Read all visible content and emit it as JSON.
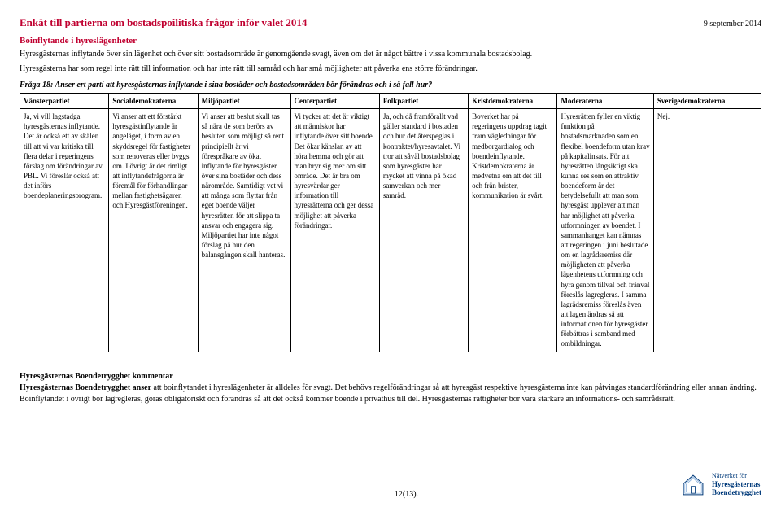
{
  "title": "Enkät till partierna om bostadspoilitiska frågor inför valet 2014",
  "date": "9 september 2014",
  "subtitle": "Boinflytande i hyreslägenheter",
  "intro1": "Hyresgästernas inflytande över sin lägenhet och över sitt bostadsområde är genomgående svagt, även om det är något bättre i vissa kommunala bostadsbolag.",
  "intro2": "Hyresgästerna har som regel inte rätt till information och har inte rätt till samråd och har små möjligheter att påverka ens större förändringar.",
  "question": "Fråga 18: Anser ert parti att hyresgästernas inflytande i sina bostäder och bostadsområden bör förändras och i så fall hur?",
  "columns": [
    {
      "label": "Vänsterpartiet",
      "width": "12%"
    },
    {
      "label": "Socialdemokraterna",
      "width": "12%"
    },
    {
      "label": "Miljöpartiet",
      "width": "12.5%"
    },
    {
      "label": "Centerpartiet",
      "width": "12%"
    },
    {
      "label": "Folkpartiet",
      "width": "12%"
    },
    {
      "label": "Kristdemokraterna",
      "width": "12%"
    },
    {
      "label": "Moderaterna",
      "width": "13%"
    },
    {
      "label": "Sverigedemokraterna",
      "width": "14.5%"
    }
  ],
  "cells": [
    "Ja, vi vill lagstadga hyresgästernas inflytande. Det är också ett av skälen till att vi var kritiska till flera delar i regeringens förslag om förändringar av PBL. Vi föreslår också att det införs boendeplaneringsprogram.",
    "Vi anser att ett förstärkt hyresgästinflytande är angeläget, i form av en skyddsregel för fastigheter som renoveras eller byggs om. I övrigt är det rimligt att inflytandefrågorna är föremål för förhandlingar mellan fastighetsägaren och Hyresgästföreningen.",
    "Vi anser att beslut skall tas så nära de som berörs av besluten som möjligt så rent principiellt är vi förespråkare av ökat inflytande för hyresgäster över sina bostäder och dess närområde. Samtidigt vet vi att många som flyttar från eget boende väljer hyresrätten för att slippa ta ansvar och engagera sig. Miljöpartiet har inte något förslag på hur den balansgången skall hanteras.",
    "Vi tycker att det är viktigt att människor har inflytande över sitt boende. Det ökar känslan av att höra hemma och gör att man bryr sig mer om sitt område. Det är bra om hyresvärdar ger information till hyresrätterna och ger dessa möjlighet att påverka förändringar.",
    "Ja, och då framförallt vad gäller standard i bostaden och hur det återspeglas i kontraktet/hyresavtalet. Vi tror att såväl bostadsbolag som hyresgäster har mycket att vinna på ökad samverkan och mer samråd.",
    "Boverket har på regeringens uppdrag tagit fram vägledningar för medborgardialog och boendeinflytande. Kristdemokraterna är medvetna om att det till och från brister, kommunikation är svårt.",
    "Hyresrätten fyller en viktig funktion på bostadsmarknaden som en flexibel boendeform utan krav på kapitalinsats. För att hyresrätten långsiktigt ska kunna ses som en attraktiv boendeform är det betydelsefullt att man som hyresgäst upplever att man har möjlighet att påverka utformningen av boendet. I sammanhanget kan nämnas att regeringen i juni beslutade om en lagrådsremiss där möjligheten att påverka lägenhetens utformning och hyra genom tillval och frånval föreslås lagregleras. I samma lagrådsremiss föreslås även att lagen ändras så att informationen för hyresgäster förbättras i samband med ombildningar.",
    "Nej."
  ],
  "comment_title": "Hyresgästernas Boendetrygghet kommentar",
  "comment_bold": "Hyresgästernas Boendetrygghet anser",
  "comment_body": " att boinflytandet i hyreslägenheter är alldeles för svagt. Det behövs regelförändringar så att hyresgäst respektive hyresgästerna inte kan påtvingas standardförändring eller annan ändring. Boinflytandet i övrigt bör lagregleras, göras obligatoriskt och förändras så att det också kommer boende i privathus till del. Hyresgästernas rättigheter bör vara starkare än informations- och samrådsrätt.",
  "page_num": "12(13).",
  "logo": {
    "line1": "Nätverket för",
    "line2": "Hyresgästernas",
    "line3": "Boendetrygghet"
  }
}
